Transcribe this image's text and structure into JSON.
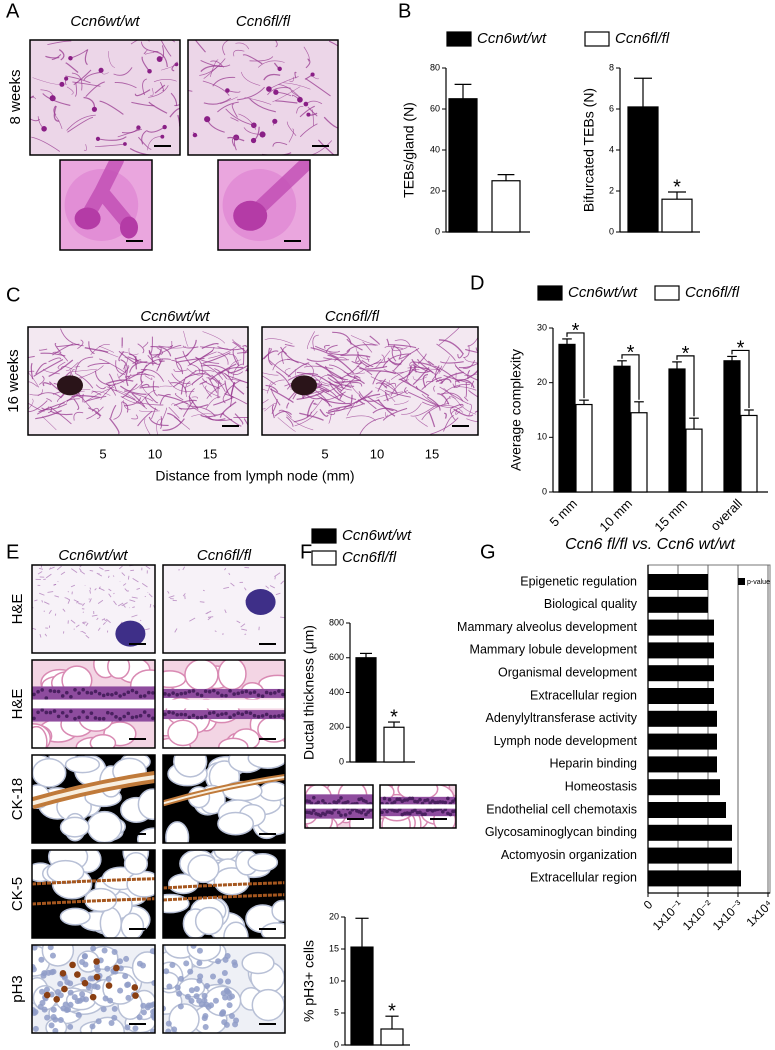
{
  "panels": {
    "A": {
      "label": "A",
      "columns": [
        "Ccn6wt/wt",
        "Ccn6fl/fl"
      ],
      "row": "8 weeks"
    },
    "B": {
      "label": "B"
    },
    "C": {
      "label": "C",
      "columns": [
        "Ccn6wt/wt",
        "Ccn6fl/fl"
      ],
      "row": "16 weeks",
      "ticks": [
        5,
        10,
        15
      ],
      "xlabel": "Distance from lymph node (mm)"
    },
    "D": {
      "label": "D"
    },
    "E": {
      "label": "E",
      "columns": [
        "Ccn6wt/wt",
        "Ccn6fl/fl"
      ],
      "rows": [
        "H&E",
        "H&E",
        "CK-18",
        "CK-5",
        "pH3"
      ]
    },
    "F": {
      "label": "F"
    },
    "G": {
      "label": "G"
    }
  },
  "chart_data": [
    {
      "type": "bar",
      "ylabel": "TEBs/gland (N)",
      "ylim": [
        0,
        80
      ],
      "yticks": [
        0,
        20,
        40,
        60,
        80
      ],
      "series": [
        {
          "name": "Ccn6wt/wt",
          "color": "#000000",
          "values": [
            65
          ],
          "errors": [
            7
          ]
        },
        {
          "name": "Ccn6fl/fl",
          "color": "#ffffff",
          "values": [
            25
          ],
          "errors": [
            3
          ]
        }
      ]
    },
    {
      "type": "bar",
      "ylabel": "Bifurcated TEBs (N)",
      "ylim": [
        0,
        8
      ],
      "yticks": [
        0,
        2,
        4,
        6,
        8
      ],
      "series": [
        {
          "color": "#000000",
          "values": [
            6.1
          ],
          "errors": [
            1.4
          ]
        },
        {
          "color": "#ffffff",
          "values": [
            1.6
          ],
          "errors": [
            0.35
          ],
          "annotations": [
            "*"
          ]
        }
      ]
    },
    {
      "type": "bar",
      "ylabel": "Average complexity",
      "ylim": [
        0,
        30
      ],
      "yticks": [
        0,
        10,
        20,
        30
      ],
      "categories": [
        "5 mm",
        "10 mm",
        "15 mm",
        "overall"
      ],
      "series": [
        {
          "name": "Ccn6wt/wt",
          "color": "#000000",
          "values": [
            27,
            23,
            22.5,
            24
          ],
          "errors": [
            1,
            1,
            1.3,
            0.8
          ]
        },
        {
          "name": "Ccn6fl/fl",
          "color": "#ffffff",
          "values": [
            16,
            14.5,
            11.5,
            14
          ],
          "errors": [
            0.8,
            2,
            2,
            1
          ],
          "annotations": [
            "*",
            "*",
            "*",
            "*"
          ]
        }
      ]
    },
    {
      "type": "bar",
      "ylabel": "Ductal thickness (μm)",
      "ylim": [
        0,
        800
      ],
      "yticks": [
        0,
        200,
        400,
        600,
        800
      ],
      "series": [
        {
          "name": "Ccn6wt/wt",
          "color": "#000000",
          "values": [
            600
          ],
          "errors": [
            25
          ]
        },
        {
          "name": "Ccn6fl/fl",
          "color": "#ffffff",
          "values": [
            200
          ],
          "errors": [
            30
          ],
          "annotations": [
            "*"
          ]
        }
      ]
    },
    {
      "type": "bar",
      "ylabel": "% pH3+ cells",
      "ylim": [
        0,
        20
      ],
      "yticks": [
        0,
        5,
        10,
        15,
        20
      ],
      "series": [
        {
          "color": "#000000",
          "values": [
            15.3
          ],
          "errors": [
            4.5
          ]
        },
        {
          "color": "#ffffff",
          "values": [
            2.5
          ],
          "errors": [
            2
          ],
          "annotations": [
            "*"
          ]
        }
      ]
    },
    {
      "type": "barh",
      "title": "Ccn6 fl/fl vs. Ccn6 wt/wt",
      "categories": [
        "Epigenetic regulation",
        "Biological quality",
        "Mammary alveolus development",
        "Mammary lobule development",
        "Organismal development",
        "Extracellular region",
        "Adenylyltransferase activity",
        "Lymph node development",
        "Heparin binding",
        "Homeostasis",
        "Endothelial cell chemotaxis",
        "Glycosaminoglycan binding",
        "Actomyosin organization",
        "Extracellular region"
      ],
      "series": [
        {
          "name": "p-value",
          "color": "#000000",
          "values": [
            2.0,
            2.0,
            2.2,
            2.2,
            2.2,
            2.2,
            2.3,
            2.3,
            2.3,
            2.4,
            2.6,
            2.8,
            2.8,
            3.1
          ]
        }
      ],
      "xlim": [
        0,
        4
      ],
      "xticks": [
        0,
        {
          "value": 1,
          "label": "1x10⁻¹"
        },
        {
          "value": 2,
          "label": "1x10⁻²"
        },
        {
          "value": 3,
          "label": "1x10⁻³"
        },
        {
          "value": 4,
          "label": "1x10⁴"
        }
      ],
      "grid": true
    }
  ]
}
